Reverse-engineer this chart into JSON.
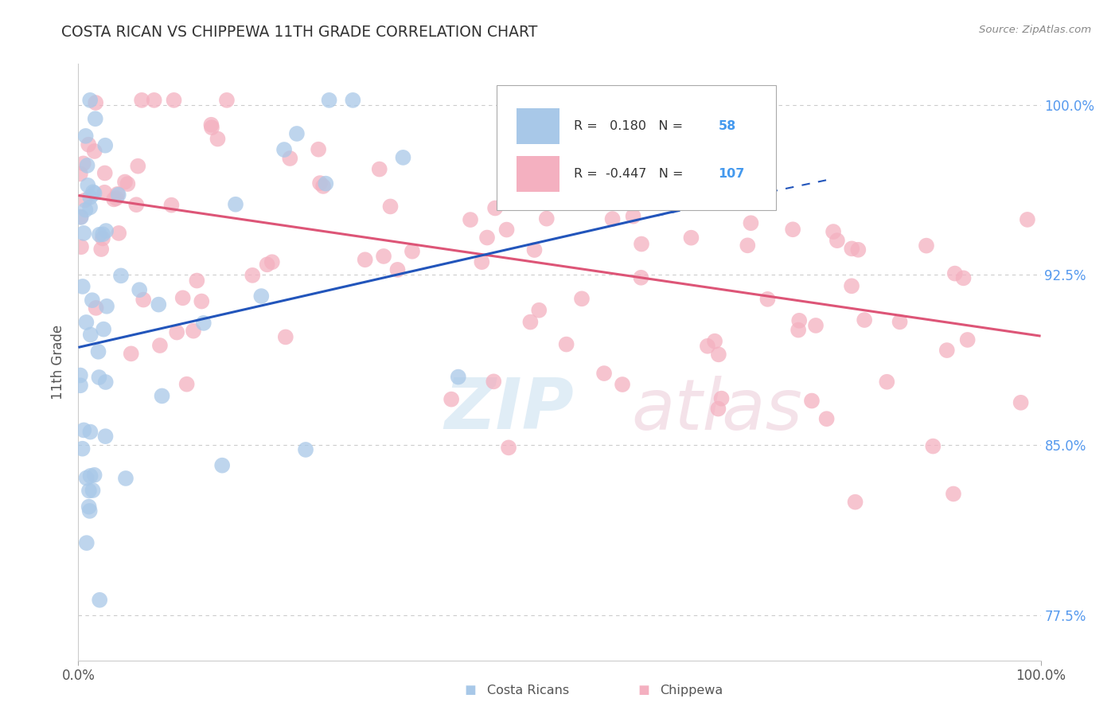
{
  "title": "COSTA RICAN VS CHIPPEWA 11TH GRADE CORRELATION CHART",
  "source": "Source: ZipAtlas.com",
  "ylabel": "11th Grade",
  "xmin": 0.0,
  "xmax": 1.0,
  "ymin": 0.755,
  "ymax": 1.018,
  "y_tick_values": [
    0.775,
    0.85,
    0.925,
    1.0
  ],
  "y_tick_labels": [
    "77.5%",
    "85.0%",
    "92.5%",
    "100.0%"
  ],
  "grid_color": "#cccccc",
  "background_color": "#ffffff",
  "blue_color": "#a8c8e8",
  "pink_color": "#f4b0c0",
  "blue_line_color": "#2255bb",
  "pink_line_color": "#e0608080",
  "blue_R": 0.18,
  "blue_N": 58,
  "pink_R": -0.447,
  "pink_N": 107,
  "legend_blue_label": "Costa Ricans",
  "legend_pink_label": "Chippewa",
  "blue_line_x0": 0.0,
  "blue_line_y0": 0.893,
  "blue_line_x1": 0.62,
  "blue_line_y1": 0.953,
  "blue_line_dash_x0": 0.6,
  "blue_line_dash_y0": 0.951,
  "blue_line_dash_x1": 0.78,
  "blue_line_dash_y1": 0.967,
  "pink_line_x0": 0.0,
  "pink_line_y0": 0.96,
  "pink_line_x1": 1.0,
  "pink_line_y1": 0.898
}
